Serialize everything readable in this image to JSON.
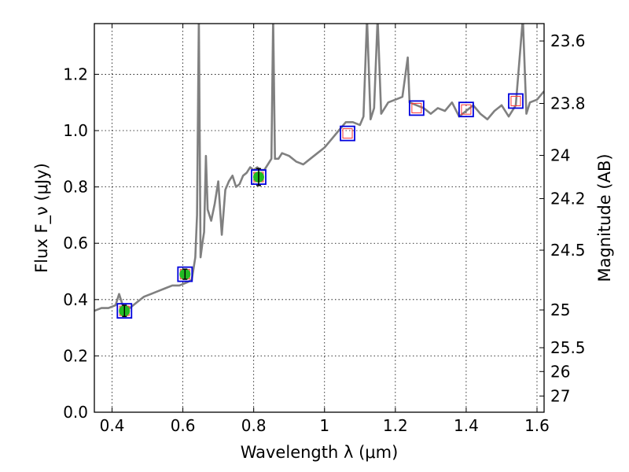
{
  "chart_data": {
    "type": "line",
    "title": "",
    "xlabel": "Wavelength λ (μm)",
    "ylabel": "Flux F_ν (μJy)",
    "y2label": "Magnitude (AB)",
    "xlim": [
      0.35,
      1.62
    ],
    "ylim": [
      0.0,
      1.38
    ],
    "x_ticks": [
      0.4,
      0.6,
      0.8,
      1.0,
      1.2,
      1.4,
      1.6
    ],
    "x_tick_labels": [
      "0.4",
      "0.6",
      "0.8",
      "1",
      "1.2",
      "1.4",
      "1.6"
    ],
    "y_ticks": [
      0.0,
      0.2,
      0.4,
      0.6,
      0.8,
      1.0,
      1.2
    ],
    "y_tick_labels": [
      "0.0",
      "0.2",
      "0.4",
      "0.6",
      "0.8",
      "1.0",
      "1.2"
    ],
    "y2_ticks": [
      {
        "label": "23.6",
        "flux": 1.3183
      },
      {
        "label": "23.8",
        "flux": 1.0965
      },
      {
        "label": "24",
        "flux": 0.912
      },
      {
        "label": "24.2",
        "flux": 0.7586
      },
      {
        "label": "24.5",
        "flux": 0.5754
      },
      {
        "label": "25",
        "flux": 0.3631
      },
      {
        "label": "25.5",
        "flux": 0.2291
      },
      {
        "label": "26",
        "flux": 0.1445
      },
      {
        "label": "27",
        "flux": 0.0575
      }
    ],
    "grid": true,
    "colors": {
      "spectrum": "#808080",
      "observed_fill": "#22bb22",
      "model_box": "#0000dd",
      "model_inner": "#ff3333",
      "errorbar": "#000000"
    },
    "series": [
      {
        "name": "model spectrum",
        "kind": "line",
        "points": [
          [
            0.35,
            0.36
          ],
          [
            0.37,
            0.37
          ],
          [
            0.39,
            0.37
          ],
          [
            0.41,
            0.38
          ],
          [
            0.42,
            0.42
          ],
          [
            0.43,
            0.38
          ],
          [
            0.45,
            0.37
          ],
          [
            0.47,
            0.39
          ],
          [
            0.49,
            0.41
          ],
          [
            0.51,
            0.42
          ],
          [
            0.53,
            0.43
          ],
          [
            0.55,
            0.44
          ],
          [
            0.57,
            0.45
          ],
          [
            0.59,
            0.45
          ],
          [
            0.61,
            0.46
          ],
          [
            0.625,
            0.47
          ],
          [
            0.635,
            0.55
          ],
          [
            0.64,
            0.7
          ],
          [
            0.645,
            1.4
          ],
          [
            0.65,
            0.55
          ],
          [
            0.655,
            0.6
          ],
          [
            0.66,
            0.64
          ],
          [
            0.665,
            0.91
          ],
          [
            0.67,
            0.72
          ],
          [
            0.68,
            0.68
          ],
          [
            0.69,
            0.74
          ],
          [
            0.7,
            0.82
          ],
          [
            0.71,
            0.63
          ],
          [
            0.72,
            0.79
          ],
          [
            0.73,
            0.82
          ],
          [
            0.74,
            0.84
          ],
          [
            0.75,
            0.8
          ],
          [
            0.76,
            0.81
          ],
          [
            0.77,
            0.84
          ],
          [
            0.78,
            0.85
          ],
          [
            0.79,
            0.87
          ],
          [
            0.8,
            0.86
          ],
          [
            0.81,
            0.87
          ],
          [
            0.82,
            0.86
          ],
          [
            0.83,
            0.86
          ],
          [
            0.84,
            0.88
          ],
          [
            0.85,
            0.9
          ],
          [
            0.855,
            1.4
          ],
          [
            0.86,
            0.9
          ],
          [
            0.87,
            0.9
          ],
          [
            0.88,
            0.92
          ],
          [
            0.9,
            0.91
          ],
          [
            0.92,
            0.89
          ],
          [
            0.94,
            0.88
          ],
          [
            0.96,
            0.9
          ],
          [
            0.98,
            0.92
          ],
          [
            1.0,
            0.94
          ],
          [
            1.02,
            0.97
          ],
          [
            1.04,
            1.0
          ],
          [
            1.06,
            1.03
          ],
          [
            1.08,
            1.03
          ],
          [
            1.1,
            1.02
          ],
          [
            1.11,
            1.05
          ],
          [
            1.12,
            1.4
          ],
          [
            1.13,
            1.04
          ],
          [
            1.14,
            1.08
          ],
          [
            1.15,
            1.4
          ],
          [
            1.16,
            1.06
          ],
          [
            1.18,
            1.1
          ],
          [
            1.2,
            1.11
          ],
          [
            1.22,
            1.12
          ],
          [
            1.235,
            1.26
          ],
          [
            1.24,
            1.1
          ],
          [
            1.26,
            1.09
          ],
          [
            1.28,
            1.08
          ],
          [
            1.3,
            1.06
          ],
          [
            1.32,
            1.08
          ],
          [
            1.34,
            1.07
          ],
          [
            1.36,
            1.1
          ],
          [
            1.38,
            1.05
          ],
          [
            1.4,
            1.07
          ],
          [
            1.42,
            1.09
          ],
          [
            1.44,
            1.06
          ],
          [
            1.46,
            1.04
          ],
          [
            1.48,
            1.07
          ],
          [
            1.5,
            1.09
          ],
          [
            1.52,
            1.05
          ],
          [
            1.54,
            1.09
          ],
          [
            1.56,
            1.4
          ],
          [
            1.57,
            1.06
          ],
          [
            1.58,
            1.1
          ],
          [
            1.6,
            1.11
          ],
          [
            1.62,
            1.14
          ]
        ]
      },
      {
        "name": "observed photometry",
        "kind": "points",
        "points": [
          {
            "x": 0.435,
            "y": 0.36,
            "err": 0.02
          },
          {
            "x": 0.606,
            "y": 0.49,
            "err": 0.018
          },
          {
            "x": 0.814,
            "y": 0.835,
            "err": 0.03
          }
        ]
      },
      {
        "name": "model photometry",
        "kind": "points",
        "points": [
          {
            "x": 0.435,
            "y": 0.36
          },
          {
            "x": 0.606,
            "y": 0.49
          },
          {
            "x": 0.814,
            "y": 0.835
          },
          {
            "x": 1.065,
            "y": 0.99
          },
          {
            "x": 1.26,
            "y": 1.08
          },
          {
            "x": 1.4,
            "y": 1.075
          },
          {
            "x": 1.54,
            "y": 1.105
          }
        ]
      }
    ]
  }
}
